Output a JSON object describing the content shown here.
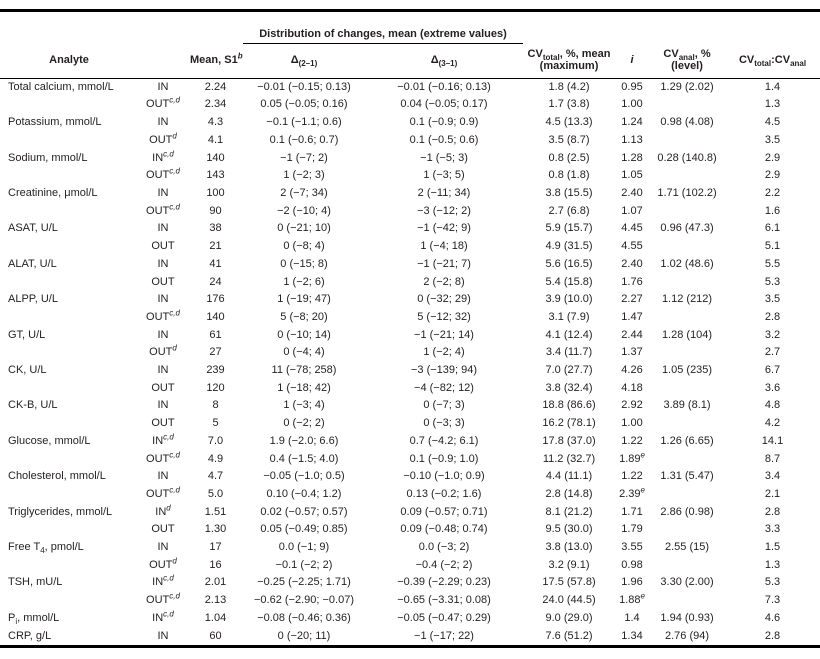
{
  "colors": {
    "text": "#231f20",
    "rule": "#000000",
    "background": "#ffffff"
  },
  "table": {
    "group_header": "Distribution of changes, mean (extreme values)",
    "headers": {
      "analyte": "Analyte",
      "mean_base": "Mean, S1",
      "mean_sup": "b",
      "delta": "Δ",
      "d21_sub": "(2–1)",
      "d31_sub": "(3–1)",
      "cv": "CV",
      "cv_total_sub": "total",
      "cv_total_post": ", %, mean",
      "cv_total_line2": "(maximum)",
      "i": "i",
      "cv_anal_sub": "anal",
      "cv_anal_post": ", %",
      "cv_anal_line2": "(level)",
      "ratio_colon_cv": ":CV"
    },
    "rows": [
      {
        "analyte": "Total calcium, mmol/L",
        "inout": "IN",
        "mean": "2.24",
        "d21": "−0.01 (−0.15; 0.13)",
        "d31": "−0.01 (−0.16; 0.13)",
        "cv_total": "1.8 (4.2)",
        "i": "0.95",
        "cv_anal": "1.29 (2.02)",
        "ratio": "1.4"
      },
      {
        "inout": "OUT",
        "inout_sup": "c,d",
        "mean": "2.34",
        "d21": "0.05 (−0.05; 0.16)",
        "d31": "0.04 (−0.05; 0.17)",
        "cv_total": "1.7 (3.8)",
        "i": "1.00",
        "ratio": "1.3"
      },
      {
        "analyte": "Potassium, mmol/L",
        "inout": "IN",
        "mean": "4.3",
        "d21": "−0.1 (−1.1; 0.6)",
        "d31": "0.1 (−0.9; 0.9)",
        "cv_total": "4.5 (13.3)",
        "i": "1.24",
        "cv_anal": "0.98 (4.08)",
        "ratio": "4.5"
      },
      {
        "inout": "OUT",
        "inout_sup": "d",
        "mean": "4.1",
        "d21": "0.1 (−0.6; 0.7)",
        "d31": "0.1 (−0.5; 0.6)",
        "cv_total": "3.5 (8.7)",
        "i": "1.13",
        "ratio": "3.5"
      },
      {
        "analyte": "Sodium, mmol/L",
        "inout": "IN",
        "inout_sup": "c,d",
        "mean": "140",
        "d21": "−1 (−7; 2)",
        "d31": "−1 (−5; 3)",
        "cv_total": "0.8 (2.5)",
        "i": "1.28",
        "cv_anal": "0.28 (140.8)",
        "ratio": "2.9"
      },
      {
        "inout": "OUT",
        "inout_sup": "c,d",
        "mean": "143",
        "d21": "1 (−2; 3)",
        "d31": "1 (−3; 5)",
        "cv_total": "0.8 (1.8)",
        "i": "1.05",
        "ratio": "2.9"
      },
      {
        "analyte": "Creatinine, μmol/L",
        "inout": "IN",
        "mean": "100",
        "d21": "2 (−7; 34)",
        "d31": "2 (−11; 34)",
        "cv_total": "3.8 (15.5)",
        "i": "2.40",
        "cv_anal": "1.71 (102.2)",
        "ratio": "2.2"
      },
      {
        "inout": "OUT",
        "inout_sup": "c,d",
        "mean": "90",
        "d21": "−2 (−10; 4)",
        "d31": "−3 (−12; 2)",
        "cv_total": "2.7 (6.8)",
        "i": "1.07",
        "ratio": "1.6"
      },
      {
        "analyte": "ASAT, U/L",
        "inout": "IN",
        "mean": "38",
        "d21": "0 (−21; 10)",
        "d31": "−1 (−42; 9)",
        "cv_total": "5.9 (15.7)",
        "i": "4.45",
        "cv_anal": "0.96 (47.3)",
        "ratio": "6.1"
      },
      {
        "inout": "OUT",
        "mean": "21",
        "d21": "0 (−8; 4)",
        "d31": "1 (−4; 18)",
        "cv_total": "4.9 (31.5)",
        "i": "4.55",
        "ratio": "5.1"
      },
      {
        "analyte": "ALAT, U/L",
        "inout": "IN",
        "mean": "41",
        "d21": "0 (−15; 8)",
        "d31": "−1 (−21; 7)",
        "cv_total": "5.6 (16.5)",
        "i": "2.40",
        "cv_anal": "1.02 (48.6)",
        "ratio": "5.5"
      },
      {
        "inout": "OUT",
        "mean": "24",
        "d21": "1 (−2; 6)",
        "d31": "2 (−2; 8)",
        "cv_total": "5.4 (15.8)",
        "i": "1.76",
        "ratio": "5.3"
      },
      {
        "analyte": "ALPP, U/L",
        "inout": "IN",
        "mean": "176",
        "d21": "1 (−19; 47)",
        "d31": "0 (−32; 29)",
        "cv_total": "3.9 (10.0)",
        "i": "2.27",
        "cv_anal": "1.12 (212)",
        "ratio": "3.5"
      },
      {
        "inout": "OUT",
        "inout_sup": "c,d",
        "mean": "140",
        "d21": "5 (−8; 20)",
        "d31": "5 (−12; 32)",
        "cv_total": "3.1 (7.9)",
        "i": "1.47",
        "ratio": "2.8"
      },
      {
        "analyte": "GT, U/L",
        "inout": "IN",
        "mean": "61",
        "d21": "0 (−10; 14)",
        "d31": "−1 (−21; 14)",
        "cv_total": "4.1 (12.4)",
        "i": "2.44",
        "cv_anal": "1.28 (104)",
        "ratio": "3.2"
      },
      {
        "inout": "OUT",
        "inout_sup": "d",
        "mean": "27",
        "d21": "0 (−4; 4)",
        "d31": "1 (−2; 4)",
        "cv_total": "3.4 (11.7)",
        "i": "1.37",
        "ratio": "2.7"
      },
      {
        "analyte": "CK, U/L",
        "inout": "IN",
        "mean": "239",
        "d21": "11 (−78; 258)",
        "d31": "−3 (−139; 94)",
        "cv_total": "7.0 (27.7)",
        "i": "4.26",
        "cv_anal": "1.05 (235)",
        "ratio": "6.7"
      },
      {
        "inout": "OUT",
        "mean": "120",
        "d21": "1 (−18; 42)",
        "d31": "−4 (−82; 12)",
        "cv_total": "3.8 (32.4)",
        "i": "4.18",
        "ratio": "3.6"
      },
      {
        "analyte": "CK-B, U/L",
        "inout": "IN",
        "mean": "8",
        "d21": "1 (−3; 4)",
        "d31": "0 (−7; 3)",
        "cv_total": "18.8 (86.6)",
        "i": "2.92",
        "cv_anal": "3.89 (8.1)",
        "ratio": "4.8"
      },
      {
        "inout": "OUT",
        "mean": "5",
        "d21": "0 (−2; 2)",
        "d31": "0 (−3; 3)",
        "cv_total": "16.2 (78.1)",
        "i": "1.00",
        "ratio": "4.2"
      },
      {
        "analyte": "Glucose, mmol/L",
        "inout": "IN",
        "inout_sup": "c,d",
        "mean": "7.0",
        "d21": "1.9 (−2.0; 6.6)",
        "d31": "0.7 (−4.2; 6.1)",
        "cv_total": "17.8 (37.0)",
        "i": "1.22",
        "cv_anal": "1.26 (6.65)",
        "ratio": "14.1"
      },
      {
        "inout": "OUT",
        "inout_sup": "c,d",
        "mean": "4.9",
        "d21": "0.4 (−1.5; 4.0)",
        "d31": "0.1 (−0.9; 1.0)",
        "cv_total": "11.2 (32.7)",
        "i": "1.89",
        "i_sup": "e",
        "ratio": "8.7"
      },
      {
        "analyte": "Cholesterol, mmol/L",
        "inout": "IN",
        "mean": "4.7",
        "d21": "−0.05 (−1.0; 0.5)",
        "d31": "−0.10 (−1.0; 0.9)",
        "cv_total": "4.4 (11.1)",
        "i": "1.22",
        "cv_anal": "1.31 (5.47)",
        "ratio": "3.4"
      },
      {
        "inout": "OUT",
        "inout_sup": "c,d",
        "mean": "5.0",
        "d21": "0.10 (−0.4; 1.2)",
        "d31": "0.13 (−0.2; 1.6)",
        "cv_total": "2.8 (14.8)",
        "i": "2.39",
        "i_sup": "e",
        "ratio": "2.1"
      },
      {
        "analyte": "Triglycerides, mmol/L",
        "inout": "IN",
        "inout_sup": "d",
        "mean": "1.51",
        "d21": "0.02 (−0.57; 0.57)",
        "d31": "0.09 (−0.57; 0.71)",
        "cv_total": "8.1 (21.2)",
        "i": "1.71",
        "cv_anal": "2.86 (0.98)",
        "ratio": "2.8"
      },
      {
        "inout": "OUT",
        "mean": "1.30",
        "d21": "0.05 (−0.49; 0.85)",
        "d31": "0.09 (−0.48; 0.74)",
        "cv_total": "9.5 (30.0)",
        "i": "1.79",
        "ratio": "3.3"
      },
      {
        "analyte": "Free T",
        "analyte_sub": "4",
        "analyte_post": ", pmol/L",
        "inout": "IN",
        "mean": "17",
        "d21": "0.0 (−1; 9)",
        "d31": "0.0 (−3; 2)",
        "cv_total": "3.8 (13.0)",
        "i": "3.55",
        "cv_anal": "2.55 (15)",
        "ratio": "1.5"
      },
      {
        "inout": "OUT",
        "inout_sup": "d",
        "mean": "16",
        "d21": "−0.1 (−2; 2)",
        "d31": "−0.4 (−2; 2)",
        "cv_total": "3.2 (9.1)",
        "i": "0.98",
        "ratio": "1.3"
      },
      {
        "analyte": "TSH, mU/L",
        "inout": "IN",
        "inout_sup": "c,d",
        "mean": "2.01",
        "d21": "−0.25 (−2.25; 1.71)",
        "d31": "−0.39 (−2.29; 0.23)",
        "cv_total": "17.5 (57.8)",
        "i": "1.96",
        "cv_anal": "3.30 (2.00)",
        "ratio": "5.3"
      },
      {
        "inout": "OUT",
        "inout_sup": "c,d",
        "mean": "2.13",
        "d21": "−0.62 (−2.90; −0.07)",
        "d31": "−0.65 (−3.31; 0.08)",
        "cv_total": "24.0 (44.5)",
        "i": "1.88",
        "i_sup": "e",
        "ratio": "7.3"
      },
      {
        "analyte": "P",
        "analyte_sub": "i",
        "analyte_post": ", mmol/L",
        "inout": "IN",
        "inout_sup": "c,d",
        "mean": "1.04",
        "d21": "−0.08 (−0.46; 0.36)",
        "d31": "−0.05 (−0.47; 0.29)",
        "cv_total": "9.0 (29.0)",
        "i": "1.4",
        "cv_anal": "1.94 (0.93)",
        "ratio": "4.6"
      },
      {
        "analyte": "CRP, g/L",
        "inout": "IN",
        "mean": "60",
        "d21": "0 (−20; 11)",
        "d31": "−1 (−17; 22)",
        "cv_total": "7.6 (51.2)",
        "i": "1.34",
        "cv_anal": "2.76 (94)",
        "ratio": "2.8"
      }
    ]
  }
}
